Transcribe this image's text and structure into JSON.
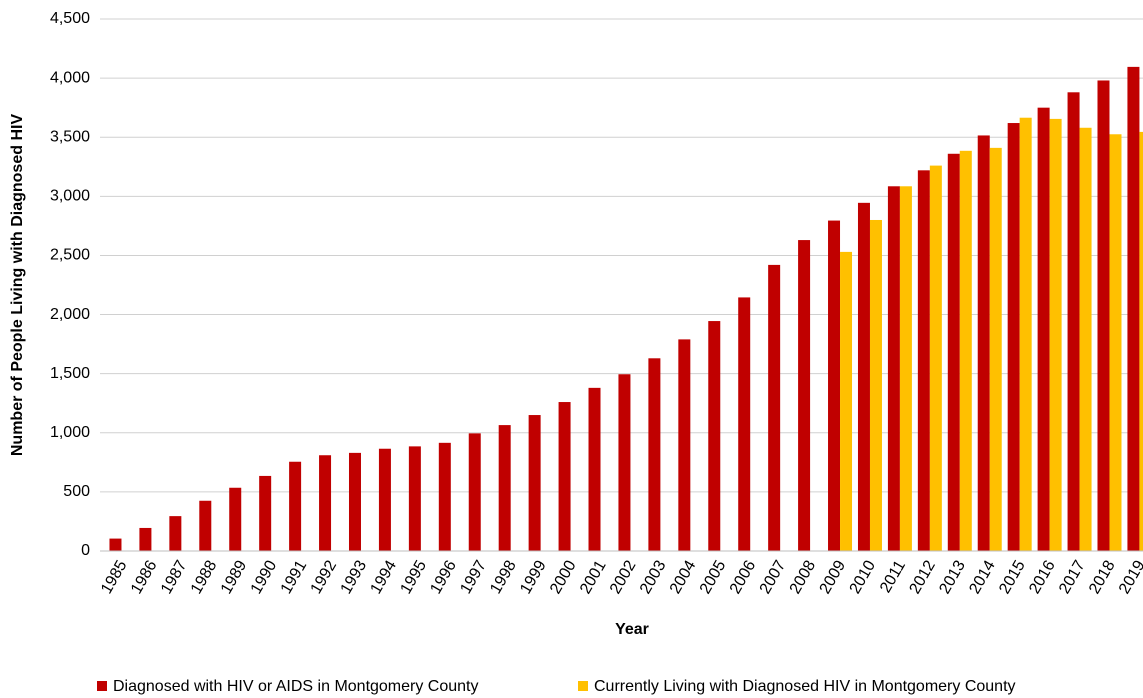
{
  "chart_data": {
    "type": "bar",
    "x_label": "Year",
    "y_label": "Number of People Living with Diagnosed HIV",
    "categories": [
      "1985",
      "1986",
      "1987",
      "1988",
      "1989",
      "1990",
      "1991",
      "1992",
      "1993",
      "1994",
      "1995",
      "1996",
      "1997",
      "1998",
      "1999",
      "2000",
      "2001",
      "2002",
      "2003",
      "2004",
      "2005",
      "2006",
      "2007",
      "2008",
      "2009",
      "2010",
      "2011",
      "2012",
      "2013",
      "2014",
      "2015",
      "2016",
      "2017",
      "2018",
      "2019"
    ],
    "series": [
      {
        "name": "Diagnosed with HIV or AIDS in Montgomery County",
        "color": "#c00000",
        "values": [
          105,
          195,
          295,
          425,
          535,
          635,
          755,
          810,
          830,
          865,
          885,
          915,
          995,
          1065,
          1150,
          1260,
          1380,
          1495,
          1630,
          1790,
          1945,
          2145,
          2420,
          2630,
          2795,
          2945,
          3085,
          3220,
          3360,
          3515,
          3620,
          3750,
          3880,
          3980,
          4095
        ]
      },
      {
        "name": "Currently Living with Diagnosed HIV in Montgomery County",
        "color": "#ffc000",
        "values": [
          null,
          null,
          null,
          null,
          null,
          null,
          null,
          null,
          null,
          null,
          null,
          null,
          null,
          null,
          null,
          null,
          null,
          null,
          null,
          null,
          null,
          null,
          null,
          null,
          2530,
          2800,
          3085,
          3260,
          3385,
          3410,
          3665,
          3655,
          3580,
          3525,
          3545
        ]
      }
    ],
    "ylim": [
      0,
      4500
    ],
    "yticks": [
      0,
      500,
      {
        "value": 1000,
        "label": "1,000"
      },
      {
        "value": 1500,
        "label": "1,500"
      },
      {
        "value": 2000,
        "label": "2,000"
      },
      {
        "value": 2500,
        "label": "2,500"
      },
      {
        "value": 3000,
        "label": "3,000"
      },
      {
        "value": 3500,
        "label": "3,500"
      },
      {
        "value": 4000,
        "label": "4,000"
      },
      {
        "value": 4500,
        "label": "4,500"
      }
    ],
    "grid": true,
    "legend": "bottom"
  }
}
